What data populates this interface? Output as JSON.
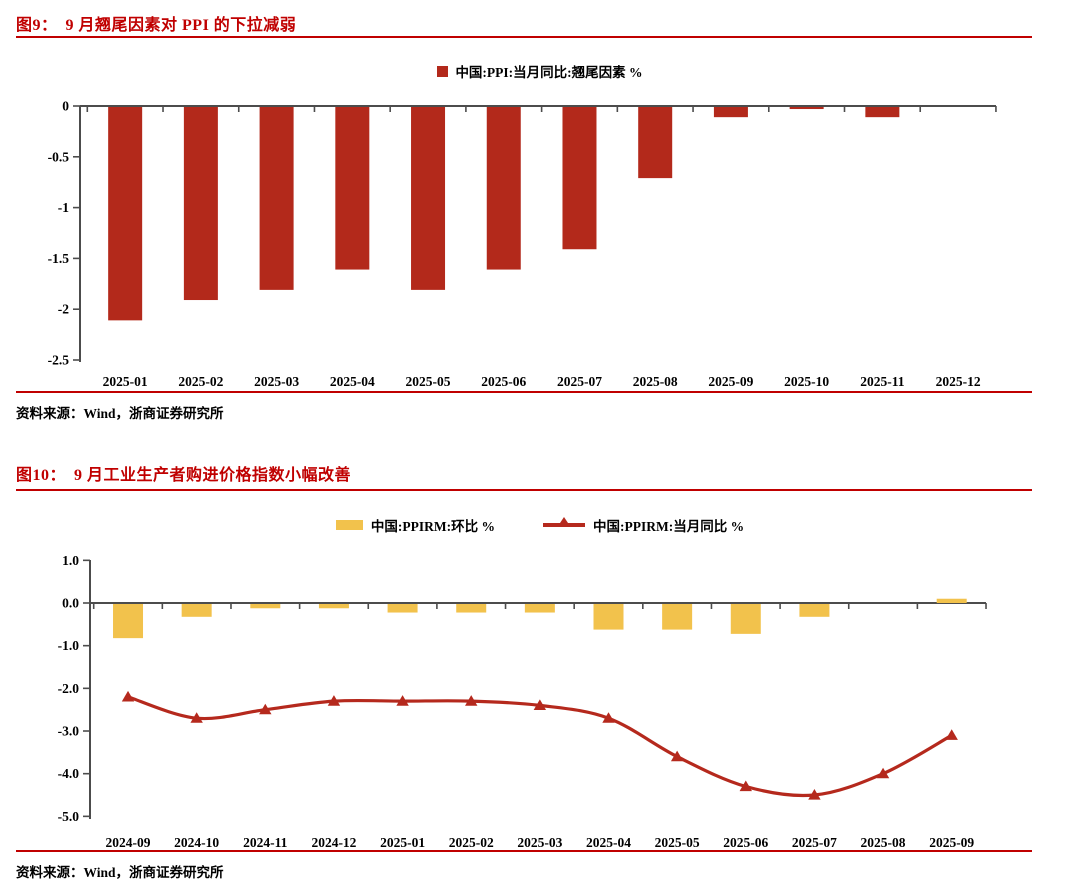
{
  "page": {
    "background": "#ffffff"
  },
  "accent_red": "#c00000",
  "axis_color": "#4c4c4c",
  "chart_data": [
    {
      "id": "figure-9",
      "type": "bar",
      "figure_label": "图9：",
      "title": "9 月翘尾因素对 PPI 的下拉减弱",
      "source": "资料来源：Wind，浙商证券研究所",
      "categories": [
        "2025-01",
        "2025-02",
        "2025-03",
        "2025-04",
        "2025-05",
        "2025-06",
        "2025-07",
        "2025-08",
        "2025-09",
        "2025-10",
        "2025-11",
        "2025-12"
      ],
      "series": [
        {
          "name": "中国:PPI:当月同比:翘尾因素 %",
          "type": "bar",
          "color": "#b3291b",
          "values": [
            -2.1,
            -1.9,
            -1.8,
            -1.6,
            -1.8,
            -1.6,
            -1.4,
            -0.7,
            -0.1,
            -0.02,
            -0.1,
            0
          ]
        }
      ],
      "ylim": [
        -2.5,
        0
      ],
      "yticks": [
        "0",
        "-0.5",
        "-1",
        "-1.5",
        "-2",
        "-2.5"
      ],
      "ytick_values": [
        0,
        -0.5,
        -1,
        -1.5,
        -2,
        -2.5
      ],
      "legend_position": "top-center",
      "grid": false
    },
    {
      "id": "figure-10",
      "type": "bar+line",
      "figure_label": "图10：",
      "title": "9 月工业生产者购进价格指数小幅改善",
      "source": "资料来源：Wind，浙商证券研究所",
      "categories": [
        "2024-09",
        "2024-10",
        "2024-11",
        "2024-12",
        "2025-01",
        "2025-02",
        "2025-03",
        "2025-04",
        "2025-05",
        "2025-06",
        "2025-07",
        "2025-08",
        "2025-09"
      ],
      "series": [
        {
          "name": "中国:PPIRM:环比 %",
          "type": "bar",
          "color": "#f2c24c",
          "values": [
            -0.8,
            -0.3,
            -0.1,
            -0.1,
            -0.2,
            -0.2,
            -0.2,
            -0.6,
            -0.6,
            -0.7,
            -0.3,
            0,
            0.1
          ]
        },
        {
          "name": "中国:PPIRM:当月同比 %",
          "type": "line",
          "color": "#b5291d",
          "values": [
            -2.2,
            -2.7,
            -2.5,
            -2.3,
            -2.3,
            -2.3,
            -2.4,
            -2.7,
            -3.6,
            -4.3,
            -4.5,
            -4.0,
            -3.1
          ]
        }
      ],
      "ylim": [
        -5,
        1
      ],
      "yticks": [
        "1.0",
        "0.0",
        "-1.0",
        "-2.0",
        "-3.0",
        "-4.0",
        "-5.0"
      ],
      "ytick_values": [
        1,
        0,
        -1,
        -2,
        -3,
        -4,
        -5
      ],
      "legend_position": "top-center",
      "grid": false
    }
  ]
}
